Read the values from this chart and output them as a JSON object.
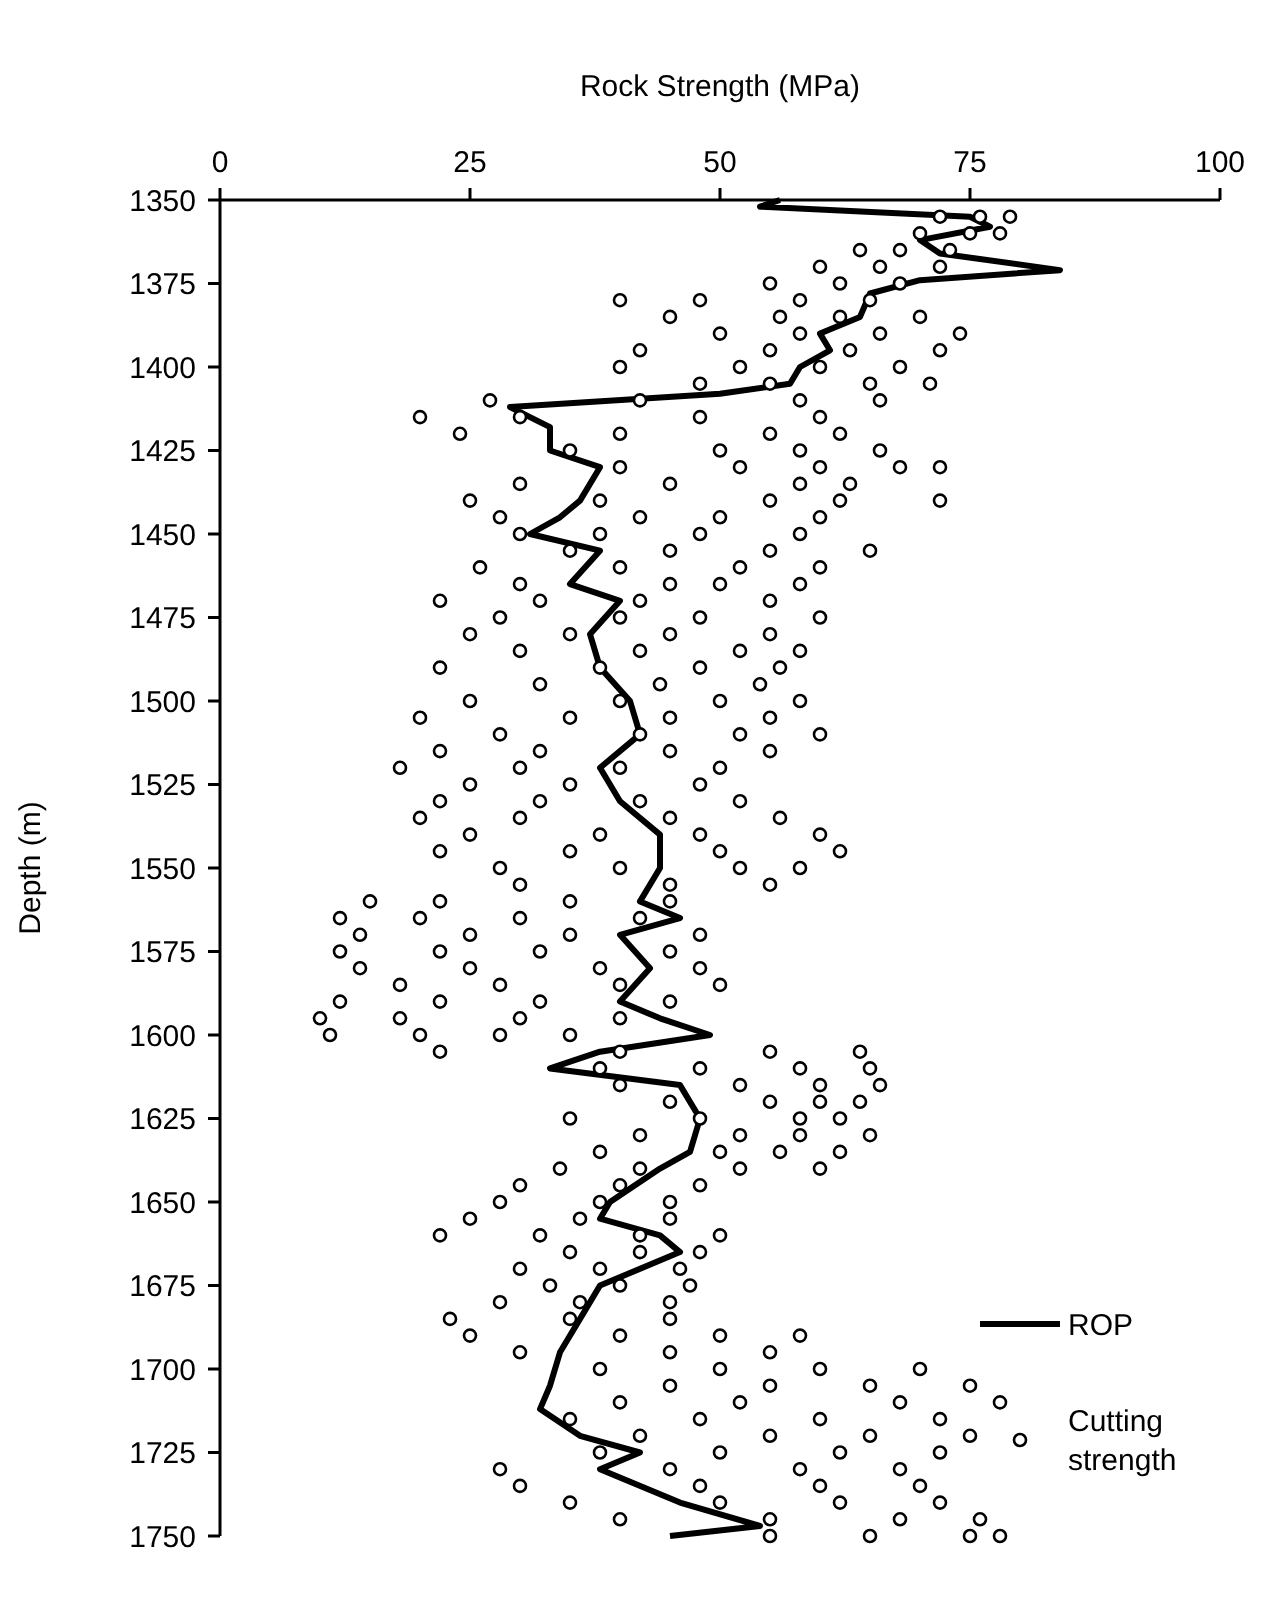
{
  "chart_data": {
    "type": "scatter",
    "xlabel": "Rock Strength (MPa)",
    "ylabel": "Depth (m)",
    "xlim": [
      0,
      100
    ],
    "xticks": [
      0,
      25,
      50,
      75,
      100
    ],
    "ylim": [
      1750,
      1350
    ],
    "yticks": [
      1350,
      1375,
      1400,
      1425,
      1450,
      1475,
      1500,
      1525,
      1550,
      1575,
      1600,
      1625,
      1650,
      1675,
      1700,
      1725,
      1750
    ],
    "legend": "bottom right",
    "grid": false,
    "series": [
      {
        "name": "ROP",
        "type": "line",
        "color": "#000000",
        "marker": "none",
        "line_style": "solid",
        "x": [
          56,
          54,
          75,
          77,
          70,
          72,
          84,
          70,
          65,
          64,
          60,
          61,
          58,
          57,
          50,
          29,
          33,
          33,
          38,
          36,
          34,
          31,
          38,
          35,
          40,
          37,
          38,
          41,
          42,
          38,
          40,
          44,
          44,
          42,
          46,
          40,
          43,
          40,
          44,
          49,
          38,
          33,
          46,
          48,
          47,
          44,
          39,
          38,
          44,
          46,
          38,
          36,
          34,
          33,
          32,
          36,
          42,
          38,
          46,
          54,
          45
        ],
        "values": [
          1350,
          1352,
          1355,
          1358,
          1362,
          1366,
          1371,
          1374,
          1378,
          1385,
          1390,
          1395,
          1400,
          1405,
          1408,
          1412,
          1418,
          1425,
          1430,
          1440,
          1445,
          1450,
          1455,
          1465,
          1470,
          1480,
          1490,
          1500,
          1510,
          1520,
          1530,
          1540,
          1550,
          1560,
          1565,
          1570,
          1580,
          1590,
          1595,
          1600,
          1605,
          1610,
          1615,
          1625,
          1635,
          1640,
          1650,
          1655,
          1660,
          1665,
          1675,
          1685,
          1695,
          1705,
          1712,
          1720,
          1725,
          1730,
          1740,
          1747,
          1750
        ]
      },
      {
        "name": "Cutting strength",
        "color": "#000000",
        "marker": "circle",
        "x": [
          72,
          76,
          79,
          70,
          75,
          78,
          68,
          73,
          64,
          60,
          66,
          72,
          55,
          62,
          68,
          40,
          48,
          58,
          65,
          45,
          56,
          62,
          70,
          50,
          58,
          66,
          74,
          42,
          55,
          63,
          72,
          40,
          52,
          60,
          68,
          48,
          55,
          65,
          71,
          27,
          42,
          58,
          66,
          20,
          30,
          48,
          60,
          24,
          40,
          55,
          62,
          35,
          50,
          58,
          66,
          40,
          52,
          60,
          68,
          72,
          30,
          45,
          58,
          63,
          25,
          38,
          55,
          62,
          72,
          28,
          42,
          50,
          60,
          30,
          38,
          48,
          58,
          35,
          45,
          55,
          65,
          26,
          40,
          52,
          60,
          30,
          45,
          50,
          58,
          22,
          32,
          42,
          55,
          28,
          40,
          48,
          60,
          25,
          35,
          45,
          55,
          30,
          42,
          52,
          58,
          22,
          38,
          48,
          56,
          32,
          44,
          54,
          25,
          40,
          50,
          58,
          20,
          35,
          45,
          55,
          28,
          42,
          52,
          60,
          22,
          32,
          45,
          55,
          18,
          30,
          40,
          50,
          25,
          35,
          48,
          22,
          32,
          42,
          52,
          20,
          30,
          45,
          56,
          25,
          38,
          48,
          60,
          22,
          35,
          50,
          62,
          28,
          40,
          52,
          58,
          30,
          45,
          55,
          15,
          22,
          35,
          45,
          12,
          20,
          30,
          42,
          14,
          25,
          35,
          48,
          12,
          22,
          32,
          45,
          14,
          25,
          38,
          48,
          18,
          28,
          40,
          50,
          12,
          22,
          32,
          45,
          10,
          18,
          30,
          40,
          11,
          20,
          28,
          35,
          22,
          40,
          55,
          64,
          38,
          48,
          58,
          65,
          40,
          52,
          60,
          66,
          45,
          55,
          60,
          64,
          35,
          48,
          58,
          62,
          42,
          52,
          58,
          65,
          38,
          50,
          56,
          62,
          34,
          42,
          52,
          60,
          30,
          40,
          48,
          28,
          38,
          45,
          25,
          36,
          45,
          22,
          32,
          42,
          50,
          35,
          42,
          48,
          30,
          38,
          46,
          33,
          40,
          47,
          28,
          36,
          45,
          23,
          35,
          45,
          25,
          40,
          50,
          58,
          30,
          45,
          55,
          38,
          50,
          60,
          70,
          45,
          55,
          65,
          75,
          40,
          52,
          68,
          78,
          35,
          48,
          60,
          72,
          42,
          55,
          65,
          75,
          38,
          50,
          62,
          72,
          28,
          45,
          58,
          68,
          30,
          48,
          60,
          70,
          35,
          50,
          62,
          72,
          40,
          55,
          68,
          76,
          55,
          65,
          75,
          78
        ],
        "values": [
          1355,
          1355,
          1355,
          1360,
          1360,
          1360,
          1365,
          1365,
          1365,
          1370,
          1370,
          1370,
          1375,
          1375,
          1375,
          1380,
          1380,
          1380,
          1380,
          1385,
          1385,
          1385,
          1385,
          1390,
          1390,
          1390,
          1390,
          1395,
          1395,
          1395,
          1395,
          1400,
          1400,
          1400,
          1400,
          1405,
          1405,
          1405,
          1405,
          1410,
          1410,
          1410,
          1410,
          1415,
          1415,
          1415,
          1415,
          1420,
          1420,
          1420,
          1420,
          1425,
          1425,
          1425,
          1425,
          1430,
          1430,
          1430,
          1430,
          1430,
          1435,
          1435,
          1435,
          1435,
          1440,
          1440,
          1440,
          1440,
          1440,
          1445,
          1445,
          1445,
          1445,
          1450,
          1450,
          1450,
          1450,
          1455,
          1455,
          1455,
          1455,
          1460,
          1460,
          1460,
          1460,
          1465,
          1465,
          1465,
          1465,
          1470,
          1470,
          1470,
          1470,
          1475,
          1475,
          1475,
          1475,
          1480,
          1480,
          1480,
          1480,
          1485,
          1485,
          1485,
          1485,
          1490,
          1490,
          1490,
          1490,
          1495,
          1495,
          1495,
          1500,
          1500,
          1500,
          1500,
          1505,
          1505,
          1505,
          1505,
          1510,
          1510,
          1510,
          1510,
          1515,
          1515,
          1515,
          1515,
          1520,
          1520,
          1520,
          1520,
          1525,
          1525,
          1525,
          1530,
          1530,
          1530,
          1530,
          1535,
          1535,
          1535,
          1535,
          1540,
          1540,
          1540,
          1540,
          1545,
          1545,
          1545,
          1545,
          1550,
          1550,
          1550,
          1550,
          1555,
          1555,
          1555,
          1560,
          1560,
          1560,
          1560,
          1565,
          1565,
          1565,
          1565,
          1570,
          1570,
          1570,
          1570,
          1575,
          1575,
          1575,
          1575,
          1580,
          1580,
          1580,
          1580,
          1585,
          1585,
          1585,
          1585,
          1590,
          1590,
          1590,
          1590,
          1595,
          1595,
          1595,
          1595,
          1600,
          1600,
          1600,
          1600,
          1605,
          1605,
          1605,
          1605,
          1610,
          1610,
          1610,
          1610,
          1615,
          1615,
          1615,
          1615,
          1620,
          1620,
          1620,
          1620,
          1625,
          1625,
          1625,
          1625,
          1630,
          1630,
          1630,
          1630,
          1635,
          1635,
          1635,
          1635,
          1640,
          1640,
          1640,
          1640,
          1645,
          1645,
          1645,
          1650,
          1650,
          1650,
          1655,
          1655,
          1655,
          1660,
          1660,
          1660,
          1660,
          1665,
          1665,
          1665,
          1670,
          1670,
          1670,
          1675,
          1675,
          1675,
          1680,
          1680,
          1680,
          1685,
          1685,
          1685,
          1690,
          1690,
          1690,
          1690,
          1695,
          1695,
          1695,
          1700,
          1700,
          1700,
          1700,
          1705,
          1705,
          1705,
          1705,
          1710,
          1710,
          1710,
          1710,
          1715,
          1715,
          1715,
          1715,
          1720,
          1720,
          1720,
          1720,
          1725,
          1725,
          1725,
          1725,
          1730,
          1730,
          1730,
          1730,
          1735,
          1735,
          1735,
          1735,
          1740,
          1740,
          1740,
          1740,
          1745,
          1745,
          1745,
          1745,
          1750,
          1750,
          1750,
          1750
        ]
      }
    ]
  }
}
